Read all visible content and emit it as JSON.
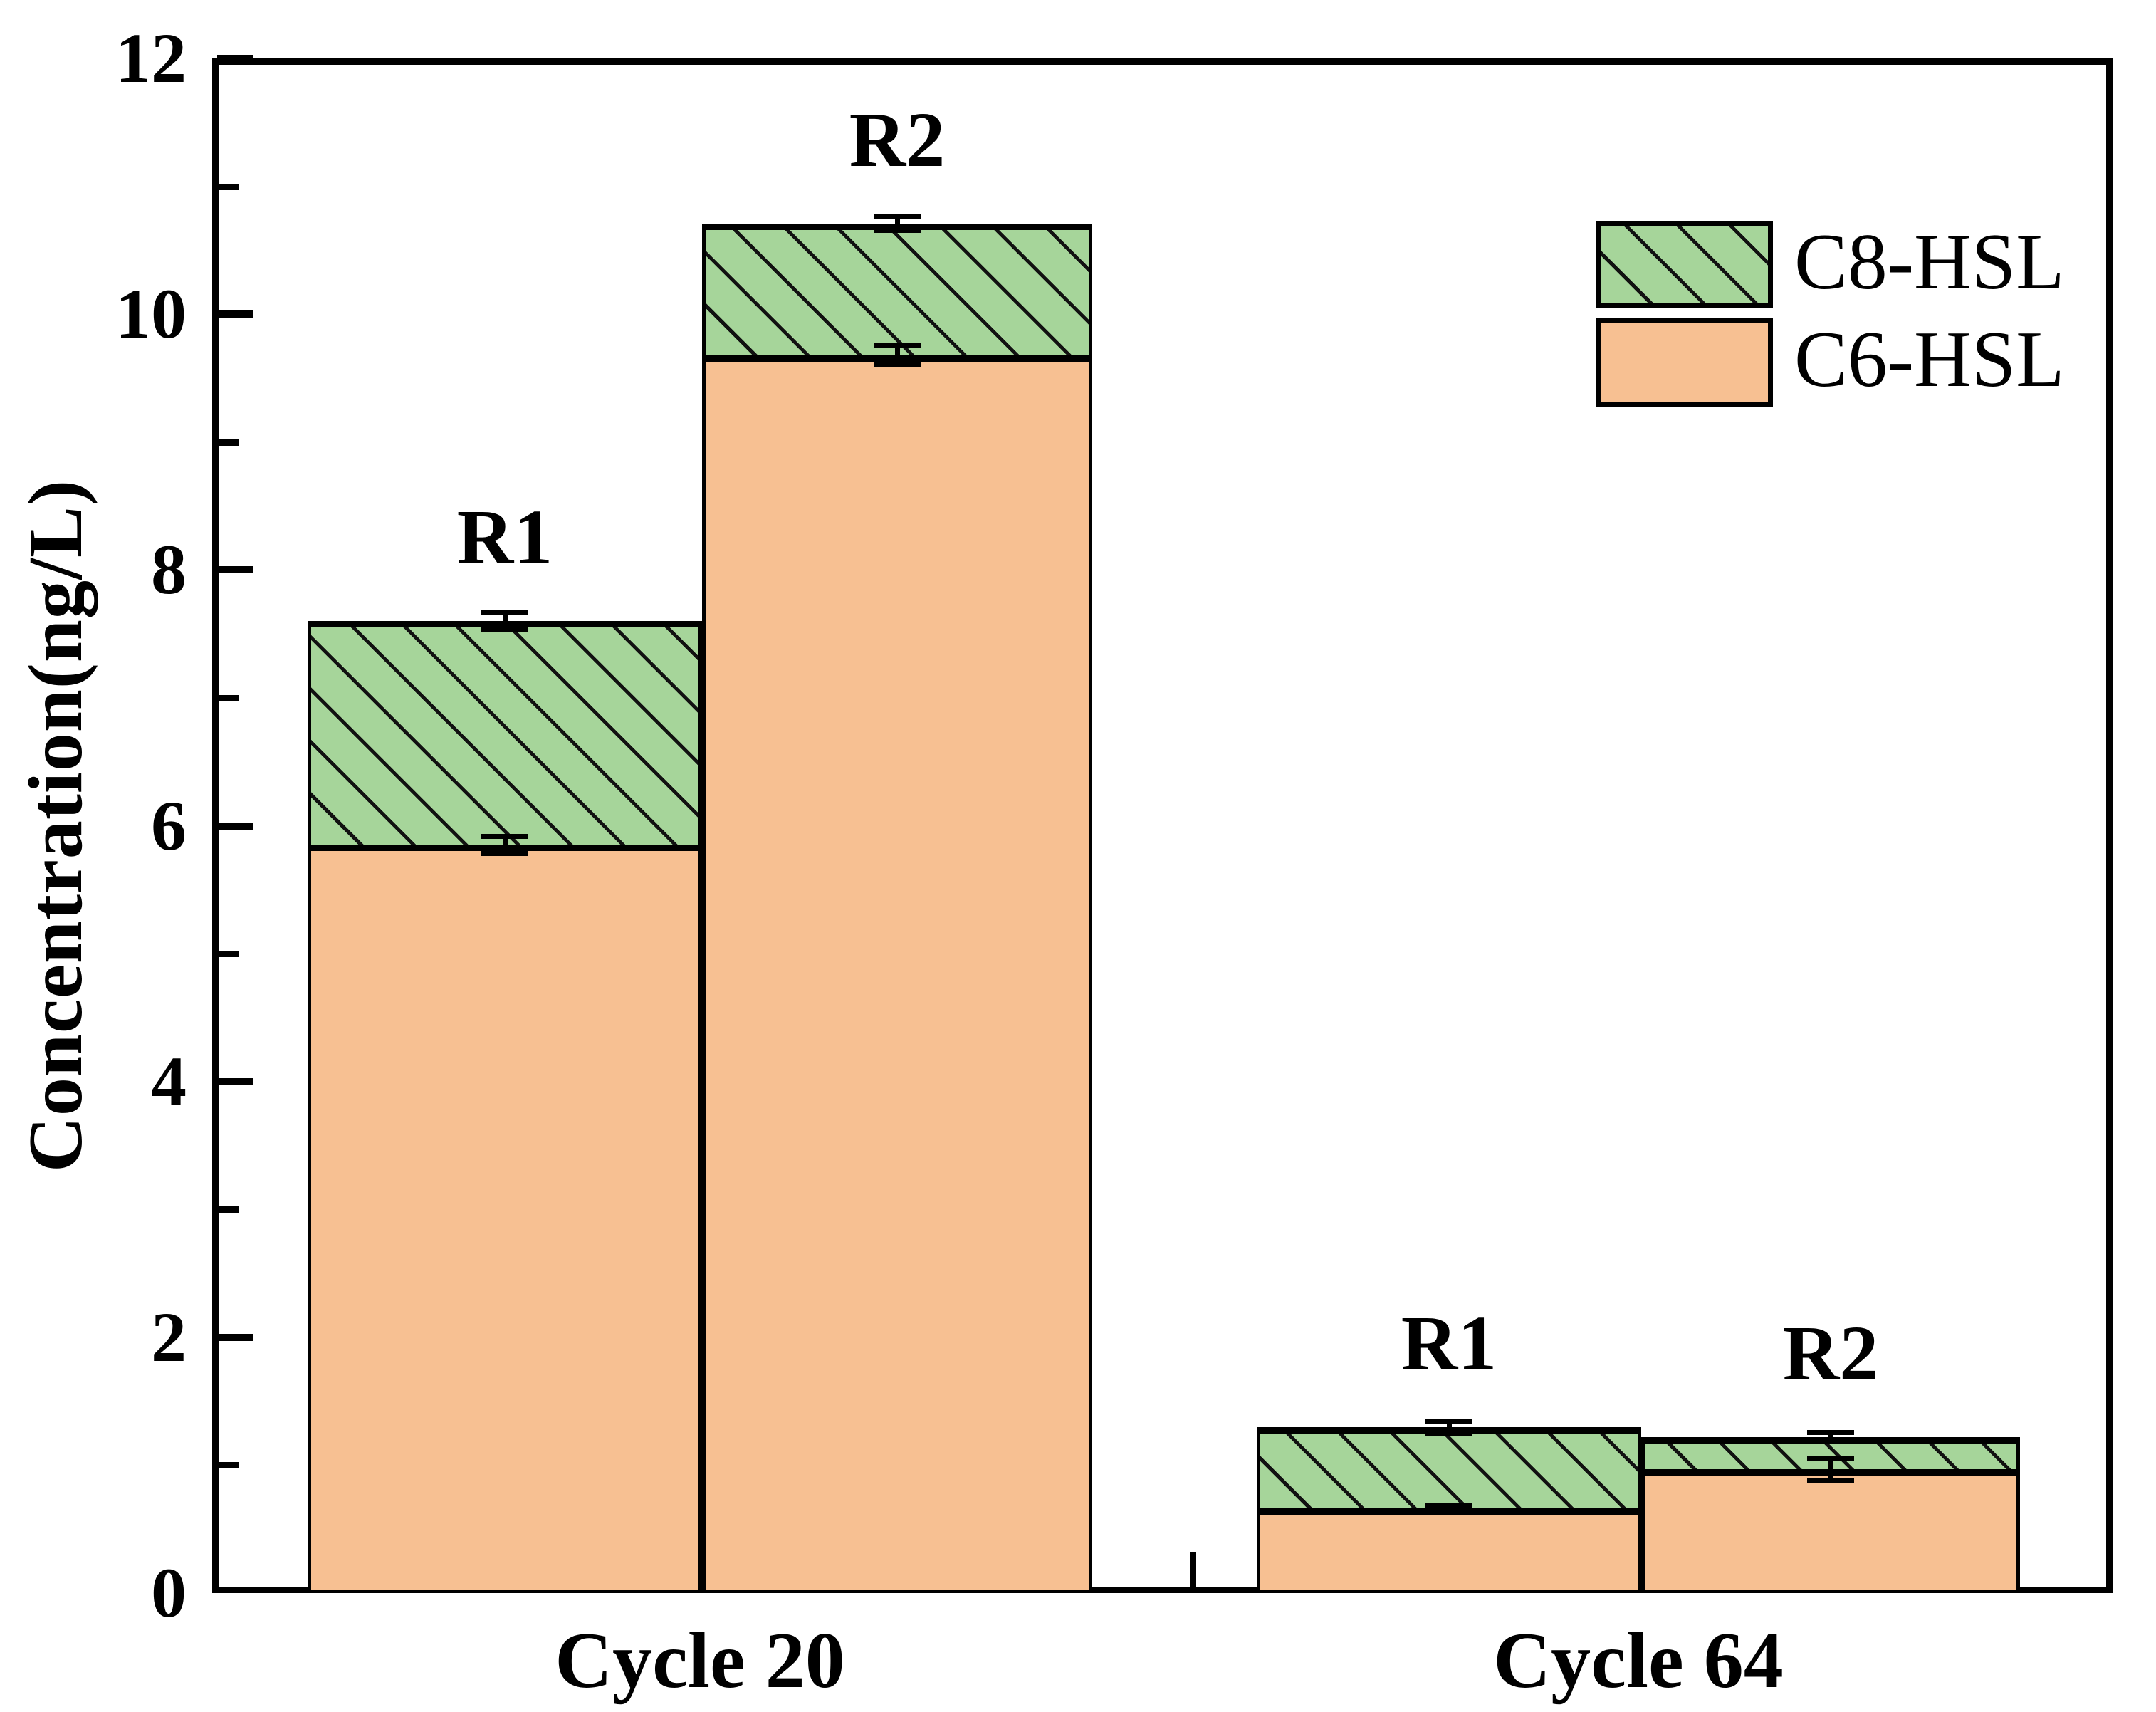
{
  "chart_data": {
    "type": "bar",
    "stacked": true,
    "title": "",
    "xlabel": "",
    "ylabel": "Concentration(ng/L)",
    "ylim": [
      0,
      12
    ],
    "yticks_major": [
      0,
      2,
      4,
      6,
      8,
      10,
      12
    ],
    "yticks_minor": [
      1,
      3,
      5,
      7,
      9,
      11
    ],
    "grid": false,
    "legend_position": "upper-right",
    "categories": [
      "Cycle 20",
      "Cycle 64"
    ],
    "bar_labels": [
      "R1",
      "R2",
      "R1",
      "R2"
    ],
    "series": [
      {
        "name": "C6-HSL",
        "values": [
          5.85,
          9.68,
          0.66,
          0.97
        ],
        "errors": [
          0.07,
          0.08,
          0.03,
          0.09
        ],
        "color": "#f7c092",
        "hatch": "none"
      },
      {
        "name": "C8-HSL",
        "values": [
          1.75,
          1.03,
          0.64,
          0.25
        ],
        "color": "#a6d59a",
        "hatch": "diagonal-down"
      }
    ],
    "totals": [
      7.6,
      10.71,
      1.3,
      1.22
    ],
    "total_errors": [
      0.07,
      0.06,
      0.05,
      0.04
    ]
  },
  "colors": {
    "c6_fill": "#f7c092",
    "c8_fill": "#a6d59a",
    "hatch_line": "#111111",
    "axis": "#000000",
    "background": "#ffffff"
  },
  "legend": {
    "items": [
      {
        "label": "C8-HSL",
        "swatch": "c8-hatched"
      },
      {
        "label": "C6-HSL",
        "swatch": "c6-solid"
      }
    ]
  }
}
